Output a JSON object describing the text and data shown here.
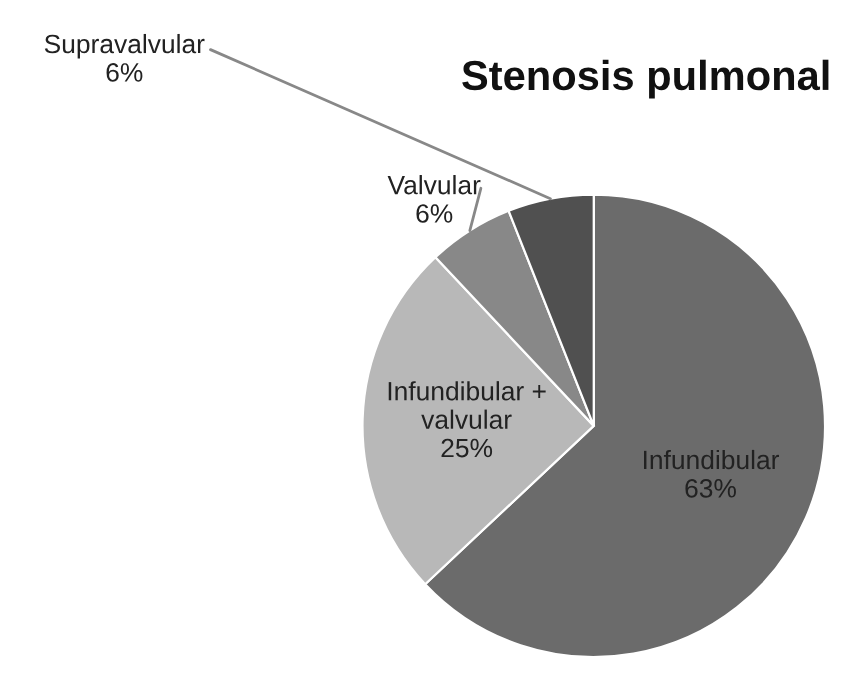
{
  "chart_data": {
    "type": "pie",
    "title": "Stenosis pulmonal",
    "categories": [
      "Infundibular",
      "Infundibular +\nvalvular",
      "Valvular",
      "Supravalvular"
    ],
    "values": [
      63,
      25,
      6,
      6
    ],
    "value_labels": [
      "63%",
      "25%",
      "6%",
      "6%"
    ],
    "colors": [
      "#6b6b6b",
      "#b8b8b8",
      "#888888",
      "#505050"
    ],
    "legend": false
  }
}
